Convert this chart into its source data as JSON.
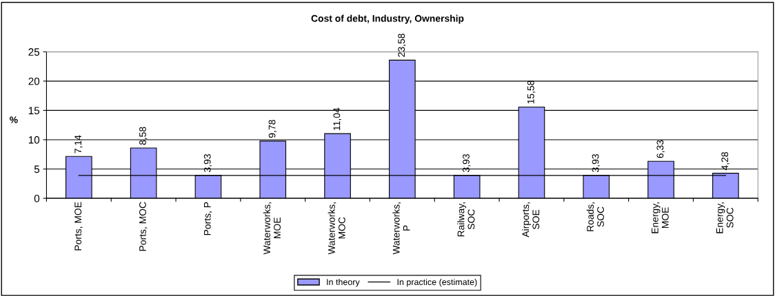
{
  "chart_data": {
    "type": "bar",
    "title": "Cost of debt, Industry, Ownership",
    "ylabel": "%",
    "categories": [
      "Ports, MOE",
      "Ports, MOC",
      "Ports, P",
      "Waterworks,\nMOE",
      "Waterworks,\nMOC",
      "Waterworks,\nP",
      "Railway,\nSOC",
      "Airports,\nSOE",
      "Roads,\nSOC",
      "Energy,\nMOE",
      "Energy,\nSOC"
    ],
    "series": [
      {
        "name": "In theory",
        "color": "#9999ff",
        "values": [
          7.14,
          8.58,
          3.93,
          9.78,
          11.04,
          23.58,
          3.93,
          15.58,
          3.93,
          6.33,
          4.28
        ],
        "value_labels": [
          "7,14",
          "8,58",
          "3,93",
          "9,78",
          "11,04",
          "23,58",
          "3,93",
          "15,58",
          "3,93",
          "6,33",
          "4,28"
        ]
      },
      {
        "name": "In practice (estimate)",
        "type": "line",
        "color": "#000000",
        "values": [
          3.9,
          3.9,
          3.9,
          3.9,
          3.9,
          3.9,
          3.9,
          3.9,
          3.9,
          3.9,
          3.9
        ]
      }
    ],
    "ylim": [
      0,
      25
    ],
    "yticks": [
      0,
      5,
      10,
      15,
      20,
      25
    ],
    "grid": "y",
    "legend": "bottom",
    "marker": "none",
    "line_style": "solid"
  }
}
